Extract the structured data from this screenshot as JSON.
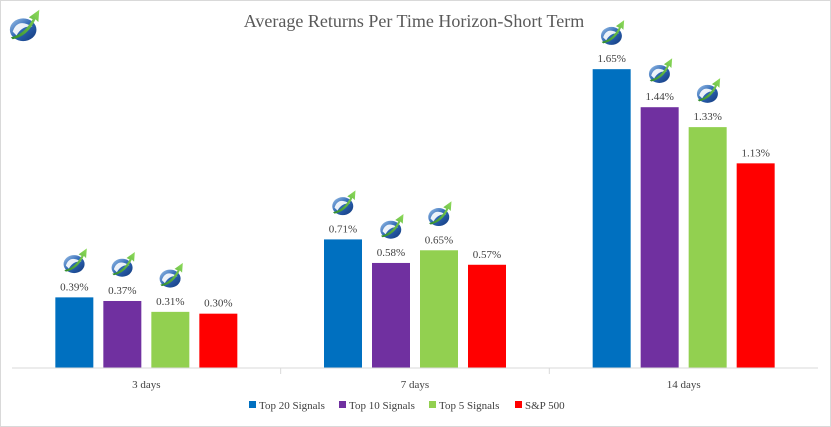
{
  "chart_data": {
    "type": "bar",
    "title": "Average Returns Per Time Horizon-Short Term",
    "categories": [
      "3 days",
      "7 days",
      "14 days"
    ],
    "series": [
      {
        "name": "Top 20 Signals",
        "color": "#0070c0",
        "values": [
          0.39,
          0.71,
          1.65
        ],
        "labels": [
          "0.39%",
          "0.71%",
          "1.65%"
        ]
      },
      {
        "name": "Top 10 Signals",
        "color": "#7030a0",
        "values": [
          0.37,
          0.58,
          1.44
        ],
        "labels": [
          "0.37%",
          "0.58%",
          "1.44%"
        ]
      },
      {
        "name": "Top 5 Signals",
        "color": "#92d050",
        "values": [
          0.31,
          0.65,
          1.33
        ],
        "labels": [
          "0.31%",
          "0.65%",
          "1.33%"
        ]
      },
      {
        "name": "S&P 500",
        "color": "#ff0000",
        "values": [
          0.3,
          0.57,
          1.13
        ],
        "labels": [
          "0.30%",
          "0.57%",
          "1.13%"
        ]
      }
    ],
    "ylim": [
      0,
      1.8
    ],
    "grid": false,
    "legend": "bottom",
    "logo_series": [
      "Top 20 Signals",
      "Top 10 Signals",
      "Top 5 Signals"
    ],
    "logo_icon": "rising-arrow-logo-icon"
  }
}
